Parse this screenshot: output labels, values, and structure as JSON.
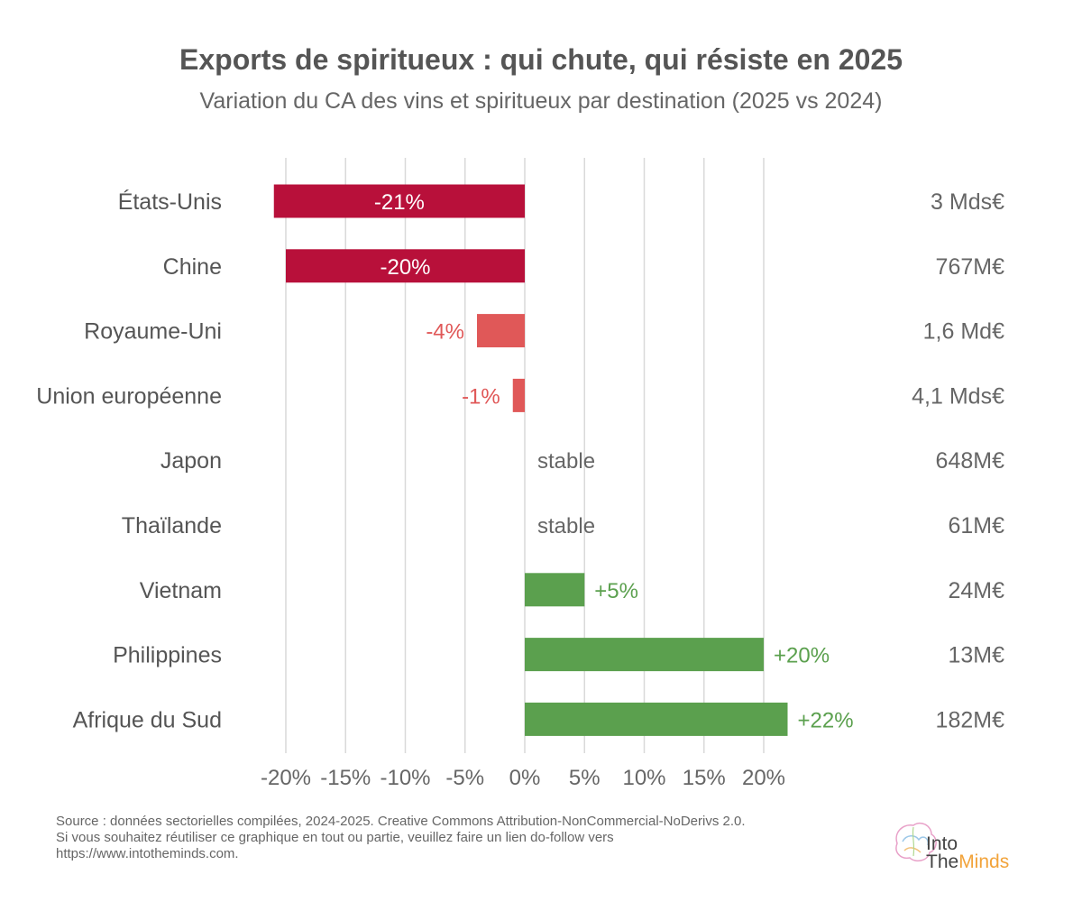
{
  "title": "Exports de spiritueux : qui chute, qui résiste en 2025",
  "subtitle": "Variation du CA des vins et spiritueux par destination (2025 vs 2024)",
  "colors": {
    "strong_negative": "#b8103a",
    "mild_negative": "#e05858",
    "positive": "#5ba04e",
    "neutral_text": "#666666",
    "grid": "#d9d9d9"
  },
  "chart_data": {
    "type": "bar",
    "orientation": "horizontal",
    "categories": [
      "États-Unis",
      "Chine",
      "Royaume-Uni",
      "Union européenne",
      "Japon",
      "Thaïlande",
      "Vietnam",
      "Philippines",
      "Afrique du Sud"
    ],
    "values": [
      -21,
      -20,
      -4,
      -1,
      0,
      0,
      5,
      20,
      22
    ],
    "data_labels": [
      "-21%",
      "-20%",
      "-4%",
      "-1%",
      "stable",
      "stable",
      "+5%",
      "+20%",
      "+22%"
    ],
    "right_labels": [
      "3 Mds€",
      "767M€",
      "1,6 Md€",
      "4,1 Mds€",
      "648M€",
      "61M€",
      "24M€",
      "13M€",
      "182M€"
    ],
    "xlim": [
      -20,
      20
    ],
    "xticks": [
      -20,
      -15,
      -10,
      -5,
      0,
      5,
      10,
      15,
      20
    ],
    "xtick_labels": [
      "-20%",
      "-15%",
      "-10%",
      "-5%",
      "0%",
      "5%",
      "10%",
      "15%",
      "20%"
    ],
    "grid": true,
    "legend": "none"
  },
  "footer": {
    "line1": "Source : données sectorielles compilées, 2024-2025. Creative Commons Attribution-NonCommercial-NoDerivs 2.0.",
    "line2": "Si vous souhaitez réutiliser ce graphique en tout ou partie, veuillez faire un lien do-follow vers",
    "line3": "https://www.intotheminds.com."
  },
  "logo": {
    "line1": "Into",
    "line2_a": "The",
    "line2_b": "Minds"
  }
}
